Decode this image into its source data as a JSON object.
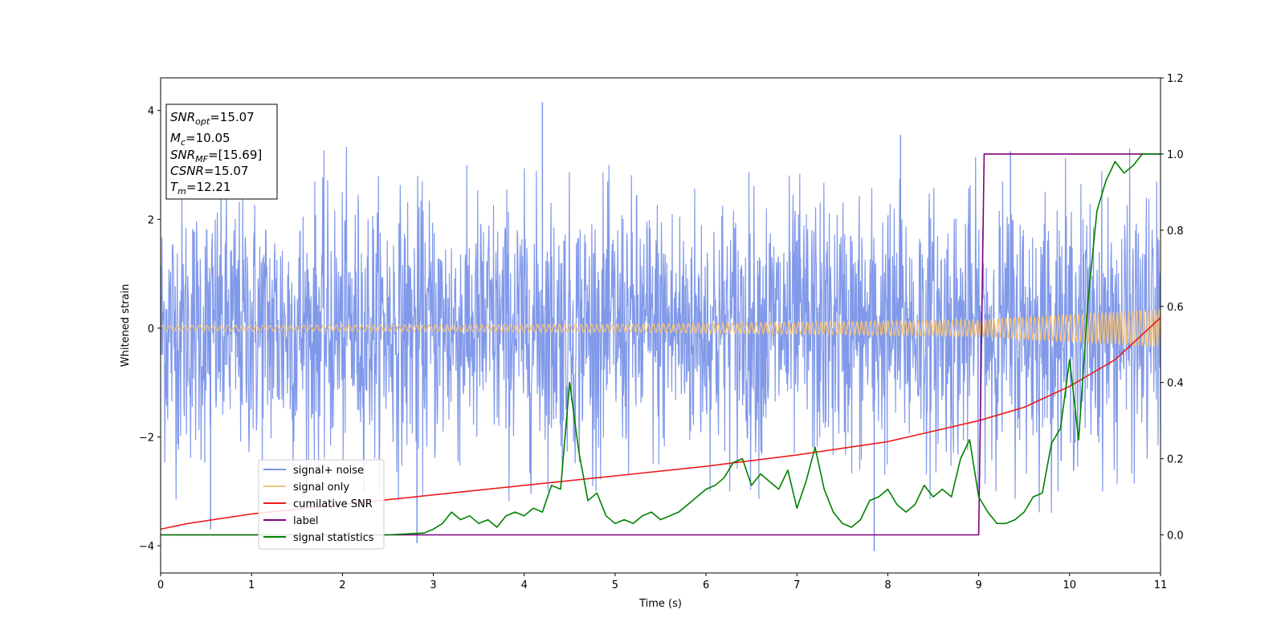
{
  "chart_data": {
    "type": "line",
    "xlabel": "Time (s)",
    "ylabel": "Whitened strain",
    "xlim": [
      0,
      11
    ],
    "ylim": [
      -4.5,
      4.6
    ],
    "y2lim": [
      -0.1,
      1.2
    ],
    "xticks": [
      "0",
      "1",
      "2",
      "3",
      "4",
      "5",
      "6",
      "7",
      "8",
      "9",
      "10",
      "11"
    ],
    "yticks": [
      "4",
      "2",
      "0",
      "−2",
      "−4"
    ],
    "y2ticks": [
      "1.2",
      "1.0",
      "0.8",
      "0.6",
      "0.4",
      "0.2",
      "0.0"
    ],
    "legend_placement": "lower-left",
    "stats_box": [
      {
        "sym": "SNR",
        "sub": "opt",
        "val": "=15.07"
      },
      {
        "sym": "M",
        "sub": "c",
        "val": "=10.05"
      },
      {
        "sym": "SNR",
        "sub": "MF",
        "val": "=[15.69]"
      },
      {
        "sym": "CSNR",
        "sub": "",
        "val": "=15.07"
      },
      {
        "sym": "T",
        "sub": "m",
        "val": "=12.21"
      }
    ],
    "series": [
      {
        "name": "signal+ noise",
        "color": "#7a94e8",
        "axis": "left",
        "kind": "noise",
        "noise_std": 1.2,
        "notable_peaks": [
          [
            4.2,
            4.15
          ],
          [
            8.14,
            3.55
          ],
          [
            9.35,
            3.25
          ],
          [
            2.82,
            -3.95
          ],
          [
            7.85,
            -4.1
          ],
          [
            0.55,
            -3.7
          ]
        ]
      },
      {
        "name": "signal only",
        "color": "#f5c27a",
        "axis": "left",
        "kind": "chirp",
        "envelope": [
          [
            0,
            0.05
          ],
          [
            5,
            0.07
          ],
          [
            9,
            0.15
          ],
          [
            11,
            0.35
          ]
        ]
      },
      {
        "name": "cumilative SNR",
        "color": "#ee1c1c",
        "axis": "right",
        "x": [
          0,
          0.3,
          1,
          2,
          3,
          4,
          5,
          6,
          7,
          8,
          9,
          9.5,
          10,
          10.5,
          11
        ],
        "y": [
          0.015,
          0.03,
          0.055,
          0.08,
          0.105,
          0.13,
          0.155,
          0.18,
          0.21,
          0.245,
          0.3,
          0.335,
          0.39,
          0.46,
          0.57
        ]
      },
      {
        "name": "label",
        "color": "#800080",
        "axis": "right",
        "x": [
          0,
          9.0,
          9.06,
          11
        ],
        "y": [
          0,
          0,
          1,
          1
        ]
      },
      {
        "name": "signal statistics",
        "color": "#008000",
        "axis": "right",
        "x": [
          0,
          2.5,
          2.9,
          3.0,
          3.1,
          3.2,
          3.3,
          3.4,
          3.5,
          3.6,
          3.7,
          3.8,
          3.9,
          4.0,
          4.1,
          4.2,
          4.3,
          4.4,
          4.5,
          4.6,
          4.7,
          4.8,
          4.9,
          5.0,
          5.1,
          5.2,
          5.3,
          5.4,
          5.5,
          5.6,
          5.7,
          5.8,
          5.9,
          6.0,
          6.1,
          6.2,
          6.3,
          6.4,
          6.5,
          6.6,
          6.7,
          6.8,
          6.9,
          7.0,
          7.1,
          7.2,
          7.3,
          7.4,
          7.5,
          7.6,
          7.7,
          7.8,
          7.9,
          8.0,
          8.1,
          8.2,
          8.3,
          8.4,
          8.5,
          8.6,
          8.7,
          8.8,
          8.9,
          9.0,
          9.1,
          9.2,
          9.3,
          9.4,
          9.5,
          9.6,
          9.7,
          9.8,
          9.9,
          10.0,
          10.1,
          10.2,
          10.3,
          10.4,
          10.5,
          10.6,
          10.7,
          10.8,
          10.9,
          11.0
        ],
        "y": [
          0,
          0,
          0.005,
          0.015,
          0.03,
          0.06,
          0.04,
          0.05,
          0.03,
          0.04,
          0.02,
          0.05,
          0.06,
          0.05,
          0.07,
          0.06,
          0.13,
          0.12,
          0.4,
          0.22,
          0.09,
          0.11,
          0.05,
          0.03,
          0.04,
          0.03,
          0.05,
          0.06,
          0.04,
          0.05,
          0.06,
          0.08,
          0.1,
          0.12,
          0.13,
          0.15,
          0.19,
          0.2,
          0.13,
          0.16,
          0.14,
          0.12,
          0.17,
          0.07,
          0.14,
          0.23,
          0.12,
          0.06,
          0.03,
          0.02,
          0.04,
          0.09,
          0.1,
          0.12,
          0.08,
          0.06,
          0.08,
          0.13,
          0.1,
          0.12,
          0.1,
          0.2,
          0.25,
          0.1,
          0.06,
          0.03,
          0.03,
          0.04,
          0.06,
          0.1,
          0.11,
          0.24,
          0.28,
          0.46,
          0.25,
          0.61,
          0.85,
          0.93,
          0.98,
          0.95,
          0.97,
          1.0,
          1.0,
          1.0
        ]
      }
    ]
  }
}
